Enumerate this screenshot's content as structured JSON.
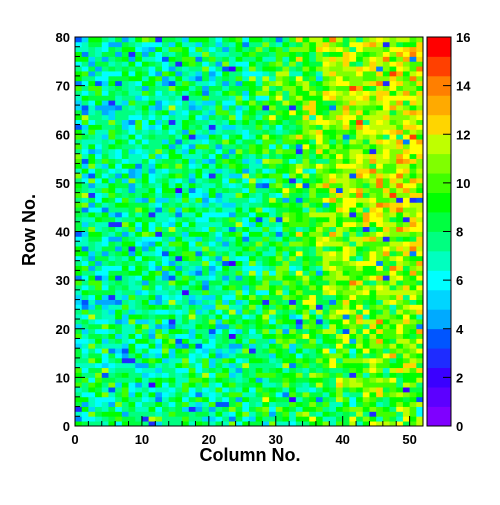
{
  "chart_data": {
    "type": "heatmap",
    "title": "",
    "xlabel": "Column No.",
    "ylabel": "Row No.",
    "x_ticks": [
      0,
      10,
      20,
      30,
      40,
      50
    ],
    "y_ticks": [
      0,
      10,
      20,
      30,
      40,
      50,
      60,
      70,
      80
    ],
    "xlim": [
      0,
      52
    ],
    "ylim": [
      0,
      80
    ],
    "n_columns": 52,
    "n_rows": 80,
    "zlim": [
      0,
      16
    ],
    "colorbar_ticks": [
      0,
      2,
      4,
      6,
      8,
      10,
      12,
      14,
      16
    ],
    "colorbar_bins": 20,
    "intensity_trend": {
      "left_half_typical": 7.5,
      "right_upper_typical": 11.5,
      "right_lower_typical": 9.5,
      "noise_spread": 2.0
    }
  },
  "palette": [
    "#7f00ff",
    "#5c00ff",
    "#3a00ff",
    "#1e2cff",
    "#0055ff",
    "#0080ff",
    "#00aaff",
    "#00d5ff",
    "#00ffff",
    "#00ffbf",
    "#00ff80",
    "#00ff40",
    "#00ff00",
    "#40ff00",
    "#80ff00",
    "#bfff00",
    "#ffff00",
    "#ffd500",
    "#ffaa00",
    "#ff7f00",
    "#ff4000",
    "#ff0000"
  ],
  "colors": {
    "frame": "#000000",
    "background": "#ffffff"
  }
}
